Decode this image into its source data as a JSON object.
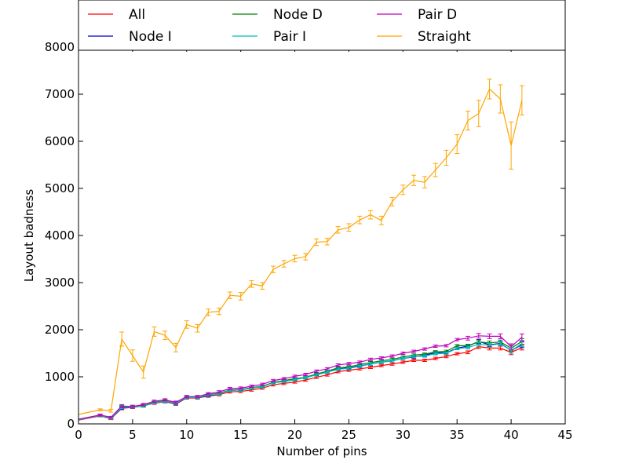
{
  "chart_data": {
    "type": "line",
    "xlabel": "Number of pins",
    "ylabel": "Layout badness",
    "xlim": [
      0,
      45
    ],
    "ylim": [
      0,
      8000
    ],
    "xticks": [
      0,
      5,
      10,
      15,
      20,
      25,
      30,
      35,
      40,
      45
    ],
    "yticks": [
      0,
      1000,
      2000,
      3000,
      4000,
      5000,
      6000,
      7000,
      8000
    ],
    "grid": false,
    "legend_position": "top",
    "x": [
      0,
      2,
      3,
      4,
      5,
      6,
      7,
      8,
      9,
      10,
      11,
      12,
      13,
      14,
      15,
      16,
      17,
      18,
      19,
      20,
      21,
      22,
      23,
      24,
      25,
      26,
      27,
      28,
      29,
      30,
      31,
      32,
      33,
      34,
      35,
      36,
      37,
      38,
      39,
      40,
      41
    ],
    "series": [
      {
        "name": "All",
        "color": "#ff0000",
        "values": [
          80,
          170,
          110,
          330,
          350,
          380,
          440,
          470,
          420,
          550,
          550,
          590,
          620,
          680,
          690,
          720,
          760,
          830,
          860,
          890,
          930,
          990,
          1040,
          1110,
          1140,
          1170,
          1200,
          1240,
          1270,
          1310,
          1350,
          1350,
          1390,
          1430,
          1490,
          1520,
          1640,
          1610,
          1610,
          1520,
          1620
        ],
        "errors": [
          0,
          20,
          20,
          30,
          25,
          25,
          25,
          25,
          25,
          25,
          25,
          25,
          25,
          25,
          25,
          25,
          25,
          25,
          25,
          25,
          25,
          25,
          25,
          25,
          25,
          25,
          25,
          25,
          25,
          25,
          25,
          25,
          25,
          25,
          25,
          30,
          40,
          40,
          40,
          50,
          50
        ]
      },
      {
        "name": "Node I",
        "color": "#0000cc",
        "values": [
          90,
          180,
          120,
          340,
          360,
          390,
          450,
          480,
          430,
          560,
          560,
          600,
          640,
          710,
          720,
          760,
          790,
          880,
          910,
          950,
          980,
          1050,
          1100,
          1170,
          1190,
          1230,
          1270,
          1310,
          1340,
          1390,
          1420,
          1460,
          1510,
          1510,
          1610,
          1650,
          1750,
          1680,
          1710,
          1560,
          1680
        ],
        "errors": [
          0,
          20,
          20,
          30,
          25,
          25,
          25,
          25,
          25,
          25,
          25,
          25,
          25,
          25,
          25,
          25,
          25,
          25,
          25,
          25,
          25,
          25,
          25,
          25,
          25,
          25,
          25,
          25,
          25,
          25,
          25,
          25,
          25,
          25,
          25,
          30,
          40,
          40,
          40,
          60,
          60
        ]
      },
      {
        "name": "Node D",
        "color": "#008000",
        "values": [
          90,
          180,
          120,
          360,
          370,
          390,
          460,
          490,
          440,
          570,
          570,
          620,
          650,
          720,
          730,
          770,
          800,
          880,
          920,
          960,
          990,
          1060,
          1120,
          1190,
          1210,
          1260,
          1300,
          1340,
          1370,
          1420,
          1460,
          1480,
          1530,
          1540,
          1660,
          1660,
          1740,
          1720,
          1740,
          1610,
          1750
        ],
        "errors": [
          0,
          20,
          20,
          30,
          25,
          25,
          25,
          25,
          25,
          25,
          25,
          25,
          25,
          25,
          25,
          25,
          25,
          25,
          25,
          25,
          25,
          25,
          25,
          25,
          25,
          25,
          25,
          25,
          25,
          25,
          25,
          25,
          25,
          25,
          25,
          30,
          40,
          40,
          40,
          60,
          60
        ]
      },
      {
        "name": "Pair I",
        "color": "#00bfbf",
        "values": [
          90,
          180,
          120,
          350,
          360,
          380,
          450,
          480,
          440,
          560,
          560,
          610,
          640,
          710,
          720,
          760,
          790,
          870,
          900,
          940,
          980,
          1040,
          1100,
          1160,
          1180,
          1220,
          1270,
          1310,
          1340,
          1390,
          1430,
          1440,
          1490,
          1500,
          1600,
          1620,
          1690,
          1670,
          1700,
          1560,
          1700
        ],
        "errors": [
          0,
          20,
          20,
          30,
          25,
          25,
          25,
          25,
          25,
          25,
          25,
          25,
          25,
          25,
          25,
          25,
          25,
          25,
          25,
          25,
          25,
          25,
          25,
          25,
          25,
          25,
          25,
          25,
          25,
          25,
          25,
          25,
          25,
          25,
          25,
          30,
          40,
          40,
          40,
          60,
          60
        ]
      },
      {
        "name": "Pair D",
        "color": "#bf00bf",
        "values": [
          100,
          190,
          140,
          380,
          370,
          410,
          480,
          510,
          460,
          580,
          580,
          640,
          680,
          750,
          760,
          800,
          840,
          920,
          960,
          1010,
          1050,
          1120,
          1170,
          1250,
          1280,
          1310,
          1370,
          1400,
          1440,
          1500,
          1540,
          1590,
          1650,
          1660,
          1790,
          1820,
          1870,
          1860,
          1860,
          1640,
          1840
        ],
        "errors": [
          0,
          20,
          20,
          30,
          25,
          25,
          25,
          25,
          25,
          25,
          25,
          25,
          25,
          25,
          25,
          25,
          25,
          25,
          25,
          25,
          25,
          25,
          25,
          25,
          25,
          25,
          25,
          25,
          25,
          25,
          25,
          25,
          25,
          25,
          25,
          40,
          50,
          50,
          50,
          60,
          70
        ]
      },
      {
        "name": "Straight",
        "color": "#ffa500",
        "values": [
          200,
          300,
          280,
          1800,
          1450,
          1100,
          1960,
          1880,
          1620,
          2110,
          2030,
          2370,
          2390,
          2730,
          2710,
          2970,
          2930,
          3280,
          3400,
          3510,
          3550,
          3860,
          3870,
          4120,
          4170,
          4330,
          4440,
          4320,
          4720,
          4970,
          5170,
          5130,
          5390,
          5650,
          5940,
          6440,
          6590,
          7110,
          6900,
          5910,
          6870
        ],
        "errors": [
          0,
          20,
          30,
          150,
          120,
          130,
          100,
          90,
          90,
          80,
          80,
          70,
          70,
          70,
          80,
          70,
          70,
          70,
          70,
          70,
          70,
          70,
          70,
          70,
          80,
          80,
          90,
          90,
          90,
          100,
          110,
          120,
          140,
          160,
          200,
          200,
          280,
          210,
          300,
          500,
          310
        ]
      }
    ]
  }
}
